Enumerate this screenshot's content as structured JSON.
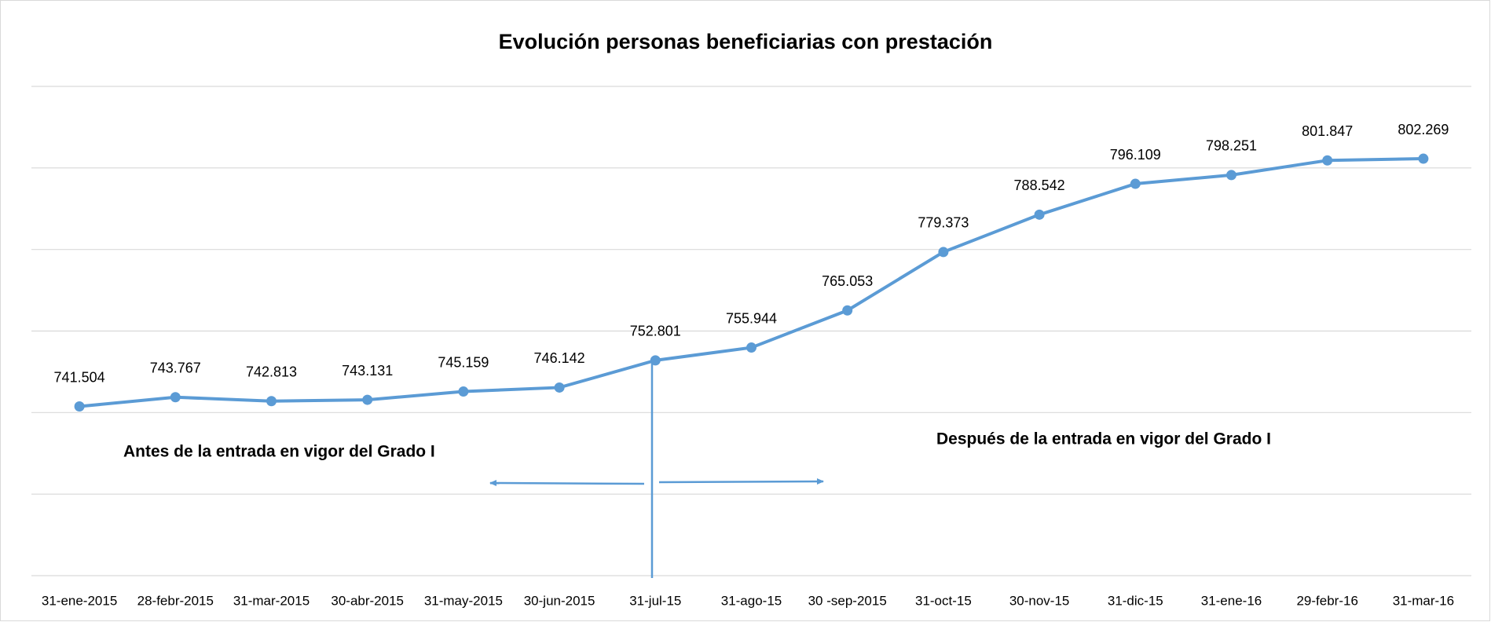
{
  "chart_data": {
    "type": "line",
    "title": "Evolución personas beneficiarias con prestación",
    "categories": [
      "31-ene-2015",
      "28-febr-2015",
      "31-mar-2015",
      "30-abr-2015",
      "31-may-2015",
      "30-jun-2015",
      "31-jul-15",
      "31-ago-15",
      "30 -sep-2015",
      "31-oct-15",
      "30-nov-15",
      "31-dic-15",
      "31-ene-16",
      "29-febr-16",
      "31-mar-16"
    ],
    "series": [
      {
        "color": "#5b9bd5",
        "values": [
          741504,
          743767,
          742813,
          743131,
          745159,
          746142,
          752801,
          755944,
          765053,
          779373,
          788542,
          796109,
          798251,
          801847,
          802269
        ],
        "value_labels": [
          "741.504",
          "743.767",
          "742.813",
          "743.131",
          "745.159",
          "746.142",
          "752.801",
          "755.944",
          "765.053",
          "779.373",
          "788.542",
          "796.109",
          "798.251",
          "801.847",
          "802.269"
        ]
      }
    ],
    "ylim": [
      700000,
      820000
    ],
    "yticks": [
      700000,
      720000,
      740000,
      760000,
      780000,
      800000,
      820000
    ],
    "grid": true,
    "annotations": [
      "Antes de la entrada en vigor del Grado I",
      "Después de la entrada en vigor del Grado I"
    ]
  }
}
